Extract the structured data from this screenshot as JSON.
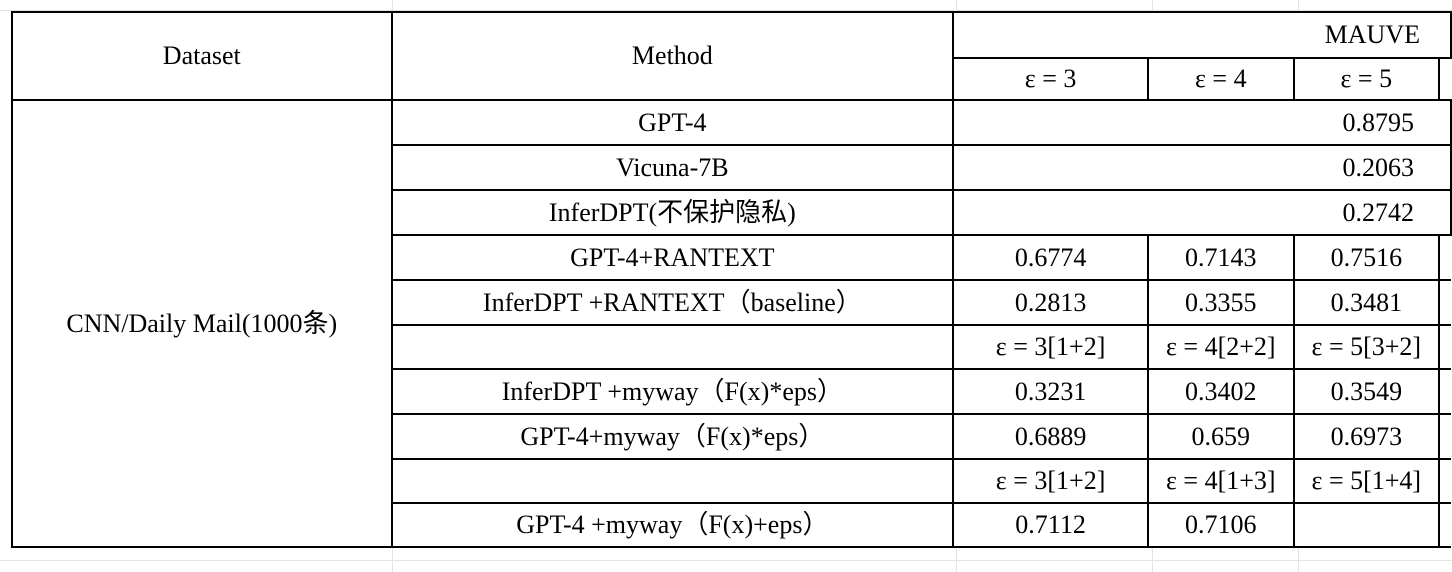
{
  "table": {
    "header": {
      "dataset": "Dataset",
      "method": "Method",
      "metric": "MAUVE",
      "eps_cols": [
        "ε = 3",
        "ε = 4",
        "ε = 5"
      ]
    },
    "dataset_name": "CNN/Daily Mail(1000条)",
    "rows": [
      {
        "method": "GPT-4",
        "merged": "0.8795"
      },
      {
        "method": "Vicuna-7B",
        "merged": "0.2063"
      },
      {
        "method": "InferDPT(不保护隐私)",
        "merged": "0.2742"
      },
      {
        "method": "GPT-4+RANTEXT",
        "v3": "0.6774",
        "v4": "0.7143",
        "v5": "0.7516"
      },
      {
        "method": "InferDPT +RANTEXT（baseline）",
        "v3": "0.2813",
        "v4": "0.3355",
        "v5": "0.3481"
      },
      {
        "method": "",
        "v3": "ε = 3[1+2]",
        "v4": "ε = 4[2+2]",
        "v5": "ε = 5[3+2]"
      },
      {
        "method": "InferDPT +myway（F(x)*eps）",
        "v3": "0.3231",
        "v4": "0.3402",
        "v5": "0.3549"
      },
      {
        "method": "GPT-4+myway（F(x)*eps）",
        "v3": "0.6889",
        "v4": "0.659",
        "v5": "0.6973"
      },
      {
        "method": "",
        "v3": "ε = 3[1+2]",
        "v4": "ε = 4[1+3]",
        "v5": "ε = 5[1+4]"
      },
      {
        "method": "GPT-4 +myway（F(x)+eps）",
        "v3": "0.7112",
        "v4": "0.7106",
        "v5": ""
      }
    ]
  }
}
